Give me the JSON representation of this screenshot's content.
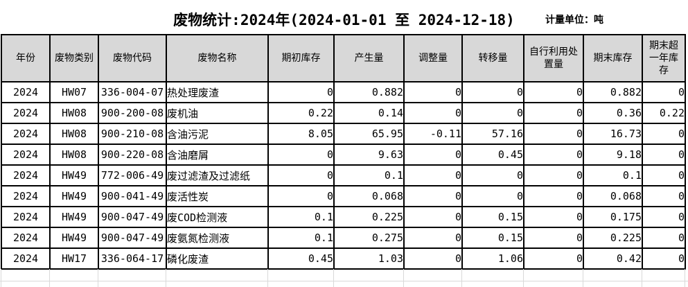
{
  "title": "废物统计:2024年(2024-01-01 至 2024-12-18)",
  "unit_label": "计量单位：吨",
  "colors": {
    "header_bg": "#d8d8d8",
    "grid_border": "#000000",
    "ghost_grid": "#d9d9d9",
    "background": "#ffffff",
    "text": "#000000"
  },
  "table": {
    "columns": [
      "年份",
      "废物类别",
      "废物代码",
      "废物名称",
      "期初库存",
      "产生量",
      "调整量",
      "转移量",
      "自行利用处置量",
      "期末库存",
      "期末超一年库存"
    ],
    "rows": [
      [
        "2024",
        "HW07",
        "336-004-07",
        "热处理废渣",
        "0",
        "0.882",
        "0",
        "0",
        "0",
        "0.882",
        "0"
      ],
      [
        "2024",
        "HW08",
        "900-200-08",
        "废机油",
        "0.22",
        "0.14",
        "0",
        "0",
        "0",
        "0.36",
        "0.22"
      ],
      [
        "2024",
        "HW08",
        "900-210-08",
        "含油污泥",
        "8.05",
        "65.95",
        "-0.11",
        "57.16",
        "0",
        "16.73",
        "0"
      ],
      [
        "2024",
        "HW08",
        "900-220-08",
        "含油磨屑",
        "0",
        "9.63",
        "0",
        "0.45",
        "0",
        "9.18",
        "0"
      ],
      [
        "2024",
        "HW49",
        "772-006-49",
        "废过滤渣及过滤纸",
        "0",
        "0.1",
        "0",
        "0",
        "0",
        "0.1",
        "0"
      ],
      [
        "2024",
        "HW49",
        "900-041-49",
        "废活性炭",
        "0",
        "0.068",
        "0",
        "0",
        "0",
        "0.068",
        "0"
      ],
      [
        "2024",
        "HW49",
        "900-047-49",
        "废COD检测液",
        "0.1",
        "0.225",
        "0",
        "0.15",
        "0",
        "0.175",
        "0"
      ],
      [
        "2024",
        "HW49",
        "900-047-49",
        "废氨氮检测液",
        "0.1",
        "0.275",
        "0",
        "0.15",
        "0",
        "0.225",
        "0"
      ],
      [
        "2024",
        "HW17",
        "336-064-17",
        "磷化废渣",
        "0.45",
        "1.03",
        "0",
        "1.06",
        "0",
        "0.42",
        "0"
      ]
    ]
  }
}
